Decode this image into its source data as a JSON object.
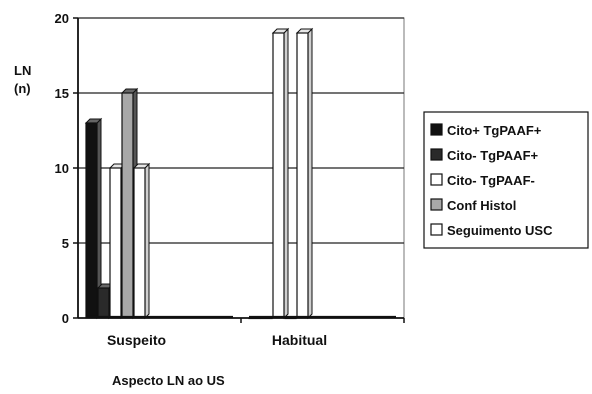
{
  "chart_data": {
    "type": "bar",
    "title": "",
    "ylabel_line1": "LN",
    "ylabel_line2": "(n)",
    "xlabel": "Aspecto LN ao US",
    "categories": [
      "Suspeito",
      "Habitual"
    ],
    "ylim": [
      0,
      20
    ],
    "yticks": [
      0,
      5,
      10,
      15,
      20
    ],
    "grid": true,
    "legend_position": "right",
    "series": [
      {
        "name": "Cito+ TgPAAF+",
        "values": [
          13,
          0
        ],
        "color": "#111111"
      },
      {
        "name": "Cito- TgPAAF+",
        "values": [
          2,
          0
        ],
        "color": "#2a2a2a"
      },
      {
        "name": "Cito- TgPAAF-",
        "values": [
          10,
          19
        ],
        "color": "#ffffff"
      },
      {
        "name": "Conf Histol",
        "values": [
          15,
          0
        ],
        "color": "#a8a8a8"
      },
      {
        "name": "Seguimento USC",
        "values": [
          10,
          19
        ],
        "color": "#ffffff"
      }
    ]
  }
}
